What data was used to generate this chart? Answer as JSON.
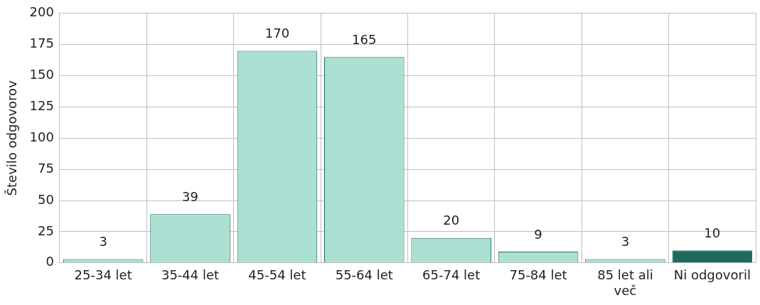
{
  "chart_data": {
    "type": "bar",
    "ylabel": "Število odgovorov",
    "categories": [
      "25-34 let",
      "35-44 let",
      "45-54 let",
      "55-64 let",
      "65-74 let",
      "75-84 let",
      "85 let ali več",
      "Ni odgovoril"
    ],
    "values": [
      3,
      39,
      170,
      165,
      20,
      9,
      3,
      10
    ],
    "colors": [
      "#ace0d2",
      "#ace0d2",
      "#ace0d2",
      "#ace0d2",
      "#ace0d2",
      "#ace0d2",
      "#ace0d2",
      "#1e6b5a"
    ],
    "ylim": [
      0,
      200
    ],
    "yticks": [
      0,
      25,
      50,
      75,
      100,
      125,
      150,
      175,
      200
    ],
    "grid": true,
    "data_labels": true,
    "legend": false
  }
}
